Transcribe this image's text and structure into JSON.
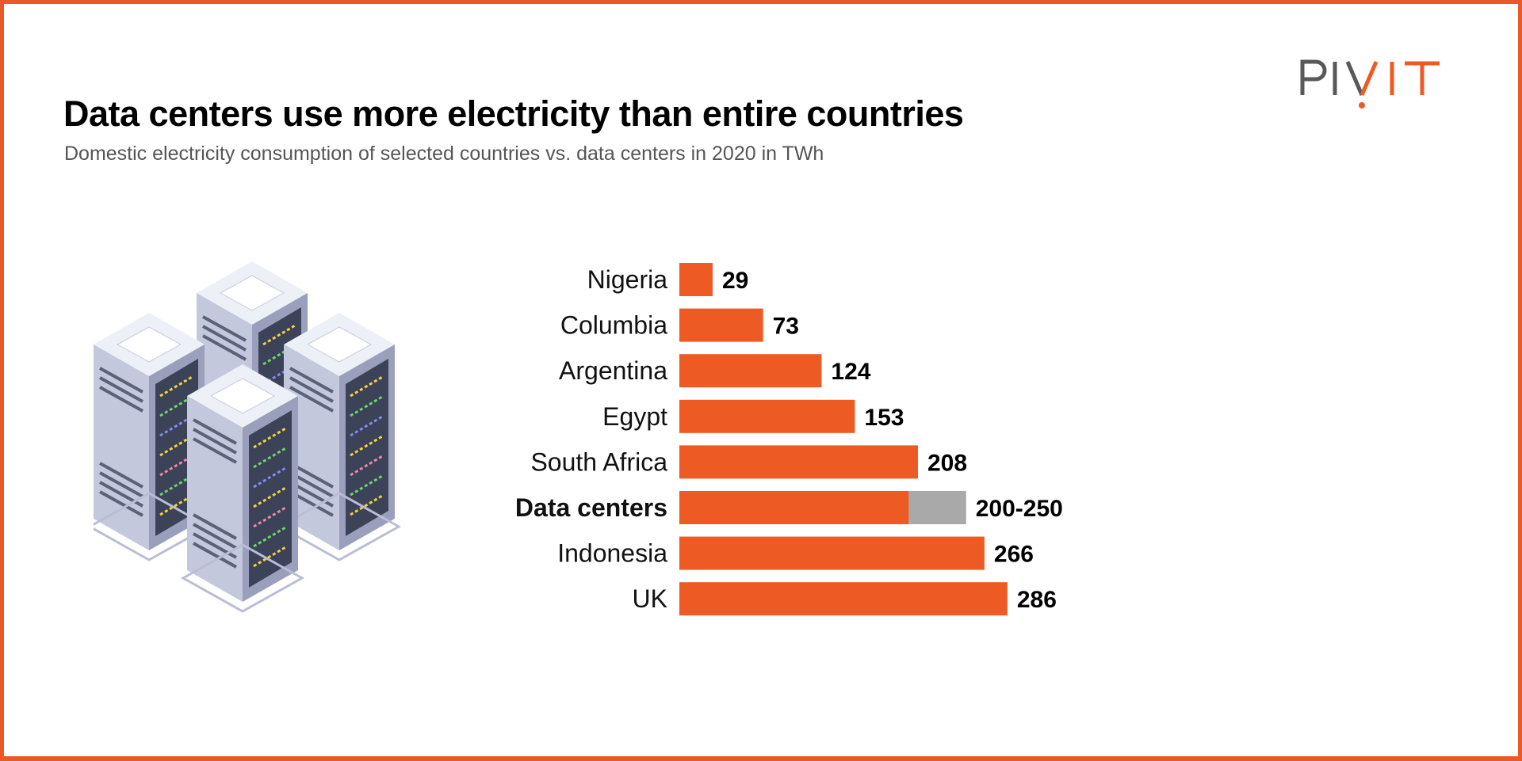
{
  "header": {
    "title": "Data centers use more electricity than entire countries",
    "subtitle": "Domestic electricity consumption of selected countries vs. data centers in 2020 in TWh",
    "logo_text": "PIVIT"
  },
  "colors": {
    "accent": "#ee5a24",
    "range": "#a9a9a9",
    "logo_gray": "#58585a",
    "border": "#e9592a"
  },
  "illustration": {
    "icon": "server-racks-icon"
  },
  "chart_data": {
    "type": "bar",
    "orientation": "horizontal",
    "title": "Data centers use more electricity than entire countries",
    "subtitle": "Domestic electricity consumption of selected countries vs. data centers in 2020 in TWh",
    "categories": [
      "Nigeria",
      "Columbia",
      "Argentina",
      "Egypt",
      "South Africa",
      "Data centers",
      "Indonesia",
      "UK"
    ],
    "values": [
      29,
      73,
      124,
      153,
      208,
      200,
      266,
      286
    ],
    "range_high": [
      null,
      null,
      null,
      null,
      null,
      250,
      null,
      null
    ],
    "data_labels": [
      "29",
      "73",
      "124",
      "153",
      "208",
      "200-250",
      "266",
      "286"
    ],
    "highlight": "Data centers",
    "xlim": [
      0,
      286
    ],
    "grid": false,
    "axes_visible": false
  }
}
